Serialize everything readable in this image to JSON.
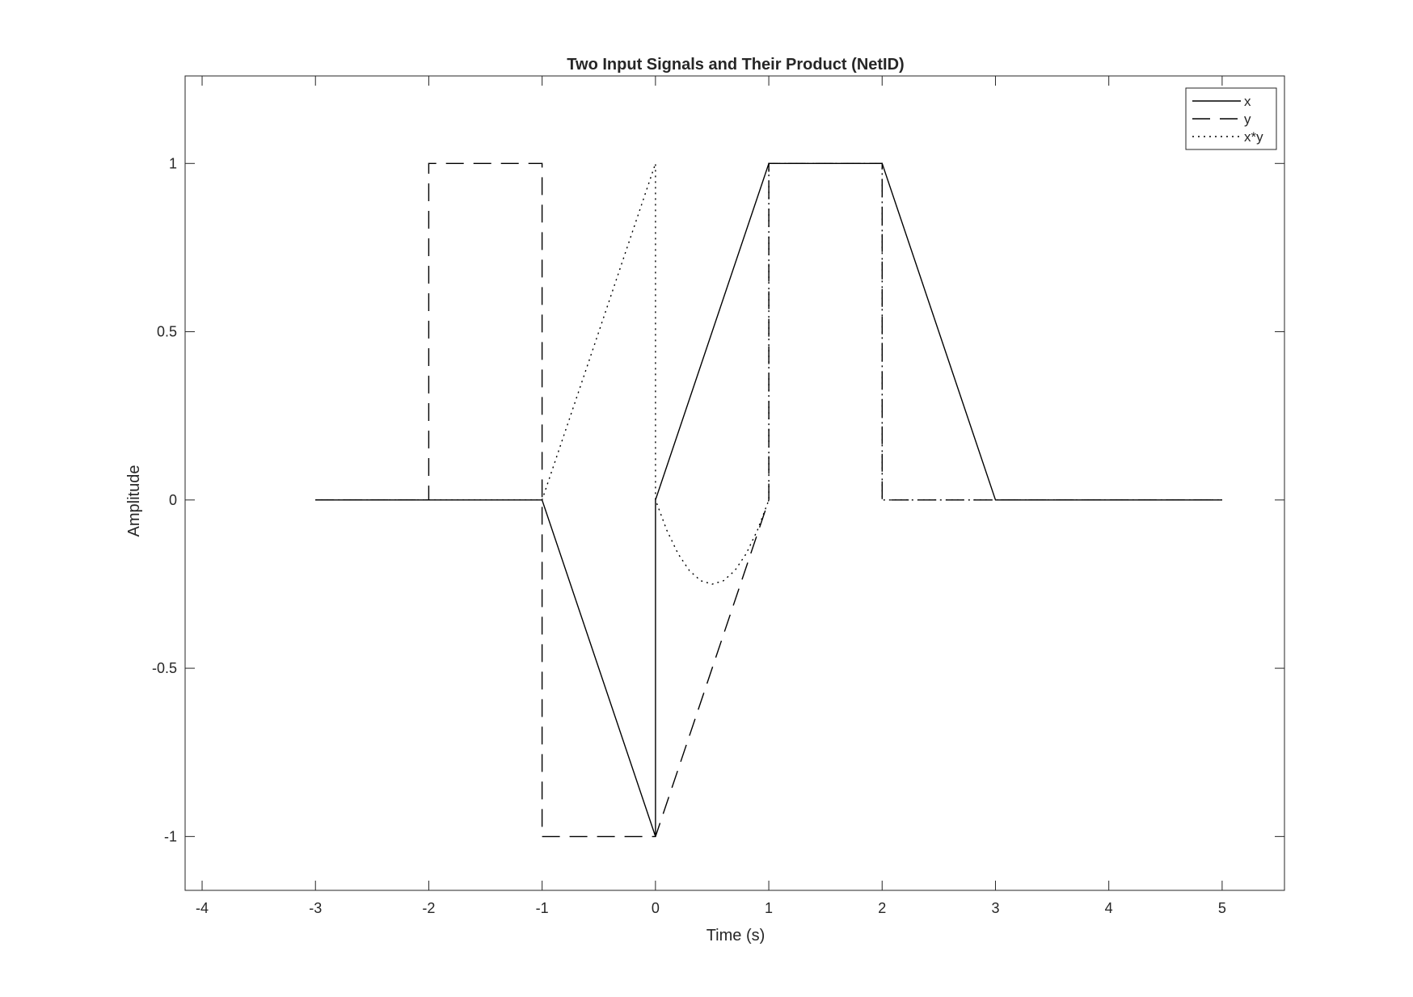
{
  "chart_data": {
    "type": "line",
    "title": "Two Input Signals and Their Product (NetID)",
    "xlabel": "Time (s)",
    "ylabel": "Amplitude",
    "xlim": [
      -4.15,
      5.55
    ],
    "ylim": [
      -1.16,
      1.26
    ],
    "xticks": [
      -4,
      -3,
      -2,
      -1,
      0,
      1,
      2,
      3,
      4,
      5
    ],
    "xtick_labels": [
      "-4",
      "-3",
      "-2",
      "-1",
      "0",
      "1",
      "2",
      "3",
      "4",
      "5"
    ],
    "yticks": [
      -1,
      -0.5,
      0,
      0.5,
      1
    ],
    "ytick_labels": [
      "-1",
      "-0.5",
      "0",
      "0.5",
      "1"
    ],
    "grid": false,
    "legend_position": "top-right",
    "series": [
      {
        "name": "x",
        "style": "solid",
        "color": "#000000",
        "points": [
          [
            -3,
            0
          ],
          [
            -1,
            0
          ],
          [
            0,
            -1
          ],
          [
            0,
            0
          ],
          [
            1,
            1
          ],
          [
            2,
            1
          ],
          [
            3,
            0
          ],
          [
            5,
            0
          ]
        ]
      },
      {
        "name": "y",
        "style": "dashed",
        "color": "#000000",
        "points": [
          [
            -3,
            0
          ],
          [
            -2,
            0
          ],
          [
            -2,
            1
          ],
          [
            -1,
            1
          ],
          [
            -1,
            -1
          ],
          [
            0,
            -1
          ],
          [
            1,
            0
          ],
          [
            1,
            1
          ],
          [
            2,
            1
          ],
          [
            2,
            0
          ],
          [
            5,
            0
          ]
        ]
      },
      {
        "name": "x*y",
        "style": "dotted",
        "color": "#000000",
        "points": [
          [
            -3,
            0
          ],
          [
            -1,
            0
          ],
          [
            -0.75,
            0.25
          ],
          [
            -0.5,
            0.5
          ],
          [
            -0.25,
            0.75
          ],
          [
            0,
            1
          ],
          [
            0,
            0
          ],
          [
            0.1,
            -0.09
          ],
          [
            0.2,
            -0.16
          ],
          [
            0.3,
            -0.21
          ],
          [
            0.4,
            -0.24
          ],
          [
            0.5,
            -0.25
          ],
          [
            0.6,
            -0.24
          ],
          [
            0.7,
            -0.21
          ],
          [
            0.8,
            -0.16
          ],
          [
            0.9,
            -0.09
          ],
          [
            1,
            0
          ],
          [
            1,
            1
          ],
          [
            2,
            1
          ],
          [
            2,
            0
          ],
          [
            5,
            0
          ]
        ]
      }
    ]
  }
}
